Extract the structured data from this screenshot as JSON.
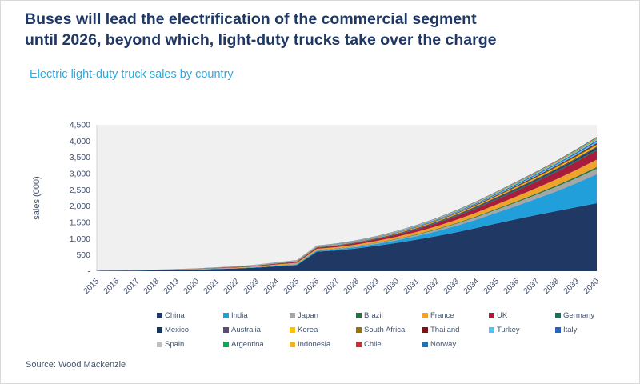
{
  "header": {
    "title_lines": [
      "Buses will lead the electrification of the commercial segment",
      "until 2026, beyond which, light-duty trucks take over the charge"
    ],
    "subtitle": "Electric light-duty truck sales by country"
  },
  "source": "Source: Wood Mackenzie",
  "colors": {
    "title": "#1f3864",
    "subtitle": "#29abe2",
    "plot_background": "#f0f0f0",
    "axis_text": "#3f4c6b",
    "axis_line": "#d0d0d0",
    "legend_text": "#44546a",
    "source_text": "#44546a"
  },
  "chart_data": {
    "type": "area",
    "stacked": true,
    "title": "Electric light-duty truck sales by country",
    "xlabel": "",
    "ylabel": "sales (000)",
    "ylim": [
      0,
      4500
    ],
    "ytick_step": 500,
    "zero_tick_label": "-",
    "grid": false,
    "legend_position": "bottom",
    "x": [
      2015,
      2016,
      2017,
      2018,
      2019,
      2020,
      2021,
      2022,
      2023,
      2024,
      2025,
      2026,
      2027,
      2028,
      2029,
      2030,
      2031,
      2032,
      2033,
      2034,
      2035,
      2036,
      2037,
      2038,
      2039,
      2040
    ],
    "series": [
      {
        "name": "China",
        "color": "#1f3864",
        "values": [
          10,
          14,
          20,
          28,
          38,
          48,
          65,
          82,
          110,
          150,
          185,
          600,
          640,
          700,
          780,
          870,
          970,
          1080,
          1200,
          1330,
          1470,
          1600,
          1730,
          1850,
          1970,
          2090
        ]
      },
      {
        "name": "India",
        "color": "#209fdb",
        "values": [
          1,
          1,
          2,
          3,
          4,
          5,
          8,
          10,
          14,
          20,
          25,
          30,
          35,
          45,
          60,
          80,
          110,
          150,
          200,
          260,
          330,
          410,
          500,
          610,
          740,
          890
        ]
      },
      {
        "name": "Japan",
        "color": "#a6a6a6",
        "values": [
          0,
          1,
          1,
          2,
          2,
          3,
          4,
          5,
          7,
          10,
          12,
          15,
          18,
          22,
          27,
          33,
          40,
          50,
          62,
          76,
          92,
          108,
          124,
          140,
          156,
          170
        ]
      },
      {
        "name": "Brazil",
        "color": "#217346",
        "values": [
          0,
          0,
          0,
          1,
          1,
          1,
          2,
          2,
          3,
          4,
          5,
          6,
          7,
          8,
          10,
          12,
          14,
          17,
          20,
          24,
          28,
          32,
          36,
          41,
          45,
          50
        ]
      },
      {
        "name": "France",
        "color": "#eea32a",
        "values": [
          1,
          2,
          3,
          4,
          6,
          8,
          11,
          14,
          18,
          24,
          30,
          36,
          40,
          46,
          54,
          63,
          74,
          86,
          100,
          116,
          133,
          151,
          170,
          190,
          210,
          230
        ]
      },
      {
        "name": "UK",
        "color": "#a81c3c",
        "values": [
          1,
          2,
          3,
          4,
          5,
          7,
          10,
          13,
          17,
          22,
          28,
          34,
          39,
          46,
          55,
          66,
          79,
          94,
          111,
          130,
          151,
          173,
          197,
          223,
          250,
          280
        ]
      },
      {
        "name": "Germany",
        "color": "#1e6c5c",
        "values": [
          0,
          0,
          1,
          1,
          2,
          2,
          3,
          4,
          5,
          6,
          8,
          9,
          10,
          11,
          13,
          15,
          17,
          19,
          22,
          25,
          28,
          31,
          34,
          36,
          38,
          40
        ]
      },
      {
        "name": "Mexico",
        "color": "#16365c",
        "values": [
          0,
          0,
          0,
          0,
          1,
          1,
          1,
          2,
          2,
          3,
          4,
          5,
          6,
          7,
          8,
          10,
          12,
          14,
          17,
          20,
          24,
          28,
          32,
          36,
          40,
          45
        ]
      },
      {
        "name": "Australia",
        "color": "#5f497a",
        "values": [
          0,
          0,
          0,
          1,
          1,
          1,
          2,
          2,
          3,
          4,
          5,
          6,
          7,
          8,
          9,
          11,
          13,
          15,
          18,
          21,
          24,
          27,
          30,
          33,
          36,
          40
        ]
      },
      {
        "name": "Korea",
        "color": "#ffc000",
        "values": [
          0,
          0,
          0,
          1,
          1,
          2,
          2,
          3,
          4,
          5,
          6,
          7,
          8,
          9,
          10,
          12,
          14,
          16,
          19,
          22,
          25,
          28,
          31,
          34,
          37,
          40
        ]
      },
      {
        "name": "South Africa",
        "color": "#997300",
        "values": [
          0,
          0,
          0,
          0,
          0,
          1,
          1,
          1,
          2,
          2,
          3,
          4,
          4,
          5,
          6,
          7,
          8,
          10,
          12,
          14,
          16,
          19,
          21,
          24,
          27,
          30
        ]
      },
      {
        "name": "Thailand",
        "color": "#7c1316",
        "values": [
          0,
          0,
          0,
          0,
          1,
          1,
          1,
          2,
          2,
          3,
          4,
          5,
          5,
          6,
          7,
          9,
          11,
          13,
          15,
          18,
          21,
          24,
          27,
          29,
          32,
          35
        ]
      },
      {
        "name": "Turkey",
        "color": "#4fc3f0",
        "values": [
          0,
          0,
          0,
          0,
          0,
          1,
          1,
          1,
          2,
          3,
          4,
          5,
          6,
          7,
          8,
          10,
          12,
          14,
          17,
          20,
          24,
          28,
          32,
          36,
          41,
          45
        ]
      },
      {
        "name": "Italy",
        "color": "#2565be",
        "values": [
          0,
          0,
          0,
          1,
          1,
          1,
          2,
          2,
          3,
          4,
          5,
          6,
          7,
          8,
          9,
          11,
          13,
          15,
          18,
          21,
          24,
          27,
          30,
          33,
          36,
          40
        ]
      },
      {
        "name": "Spain",
        "color": "#bfbfbf",
        "values": [
          0,
          0,
          0,
          0,
          1,
          1,
          1,
          2,
          2,
          3,
          4,
          5,
          5,
          6,
          7,
          9,
          10,
          12,
          14,
          17,
          20,
          23,
          26,
          29,
          32,
          35
        ]
      },
      {
        "name": "Argentina",
        "color": "#00b050",
        "values": [
          0,
          0,
          0,
          0,
          0,
          0,
          1,
          1,
          1,
          2,
          2,
          3,
          3,
          4,
          4,
          5,
          6,
          7,
          9,
          10,
          12,
          14,
          16,
          17,
          19,
          20
        ]
      },
      {
        "name": "Indonesia",
        "color": "#f0b323",
        "values": [
          0,
          0,
          0,
          0,
          0,
          0,
          1,
          1,
          1,
          2,
          2,
          3,
          3,
          4,
          4,
          5,
          6,
          7,
          8,
          10,
          11,
          13,
          14,
          16,
          18,
          20
        ]
      },
      {
        "name": "Chile",
        "color": "#d7282f",
        "values": [
          0,
          0,
          0,
          0,
          0,
          0,
          0,
          1,
          1,
          1,
          2,
          2,
          3,
          3,
          4,
          4,
          5,
          6,
          7,
          8,
          9,
          10,
          11,
          12,
          14,
          15
        ]
      },
      {
        "name": "Norway",
        "color": "#2271b5",
        "values": [
          1,
          1,
          2,
          2,
          3,
          3,
          4,
          4,
          5,
          5,
          6,
          6,
          7,
          7,
          8,
          8,
          9,
          10,
          11,
          12,
          12,
          13,
          14,
          14,
          15,
          15
        ]
      }
    ]
  }
}
